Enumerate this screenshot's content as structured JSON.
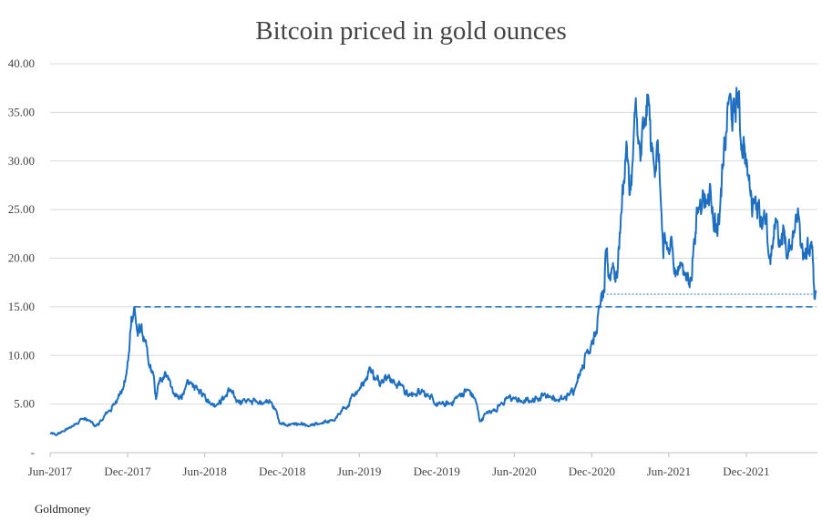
{
  "source": "Goldmoney",
  "chart_data": {
    "type": "line",
    "title": "Bitcoin priced in gold ounces",
    "xlabel": "",
    "ylabel": "",
    "ylim": [
      0,
      40
    ],
    "y_ticks": [
      0,
      5,
      10,
      15,
      20,
      25,
      30,
      35,
      40
    ],
    "y_tick_labels": [
      "-",
      "5.00",
      "10.00",
      "15.00",
      "20.00",
      "25.00",
      "30.00",
      "35.00",
      "40.00"
    ],
    "x_ticks": [
      "2017-06-01",
      "2017-12-01",
      "2018-06-01",
      "2018-12-01",
      "2019-06-01",
      "2019-12-01",
      "2020-06-01",
      "2020-12-01",
      "2021-06-01",
      "2021-12-01"
    ],
    "x_tick_labels": [
      "Jun-2017",
      "Dec-2017",
      "Jun-2018",
      "Dec-2018",
      "Jun-2019",
      "Dec-2019",
      "Jun-2020",
      "Dec-2020",
      "Jun-2021",
      "Dec-2021"
    ],
    "grid": "horizontal",
    "line_color": "#1f6fc0",
    "series": [
      {
        "values": [
          [
            "2017-06-01",
            2.0
          ],
          [
            "2017-06-15",
            1.8
          ],
          [
            "2017-07-01",
            2.2
          ],
          [
            "2017-07-15",
            2.5
          ],
          [
            "2017-08-01",
            3.0
          ],
          [
            "2017-08-15",
            3.5
          ],
          [
            "2017-09-01",
            3.3
          ],
          [
            "2017-09-15",
            2.7
          ],
          [
            "2017-10-01",
            3.3
          ],
          [
            "2017-10-15",
            4.2
          ],
          [
            "2017-11-01",
            5.0
          ],
          [
            "2017-11-10",
            6.0
          ],
          [
            "2017-11-20",
            6.5
          ],
          [
            "2017-11-28",
            8.0
          ],
          [
            "2017-12-05",
            10.5
          ],
          [
            "2017-12-10",
            14.0
          ],
          [
            "2017-12-17",
            15.0
          ],
          [
            "2017-12-25",
            12.0
          ],
          [
            "2018-01-01",
            13.0
          ],
          [
            "2018-01-10",
            11.5
          ],
          [
            "2018-01-20",
            9.0
          ],
          [
            "2018-01-31",
            8.0
          ],
          [
            "2018-02-06",
            5.5
          ],
          [
            "2018-02-15",
            7.5
          ],
          [
            "2018-02-28",
            8.3
          ],
          [
            "2018-03-10",
            7.5
          ],
          [
            "2018-03-20",
            6.0
          ],
          [
            "2018-04-01",
            5.5
          ],
          [
            "2018-04-15",
            6.5
          ],
          [
            "2018-05-01",
            7.2
          ],
          [
            "2018-05-15",
            6.5
          ],
          [
            "2018-06-01",
            6.0
          ],
          [
            "2018-06-15",
            5.0
          ],
          [
            "2018-07-01",
            5.0
          ],
          [
            "2018-07-20",
            5.8
          ],
          [
            "2018-08-01",
            6.5
          ],
          [
            "2018-08-15",
            5.2
          ],
          [
            "2018-09-01",
            5.5
          ],
          [
            "2018-09-15",
            5.3
          ],
          [
            "2018-10-01",
            5.3
          ],
          [
            "2018-10-20",
            5.2
          ],
          [
            "2018-11-05",
            5.2
          ],
          [
            "2018-11-15",
            4.5
          ],
          [
            "2018-11-25",
            3.0
          ],
          [
            "2018-12-10",
            2.8
          ],
          [
            "2018-12-25",
            3.0
          ],
          [
            "2019-01-10",
            2.9
          ],
          [
            "2019-02-01",
            2.7
          ],
          [
            "2019-03-01",
            3.0
          ],
          [
            "2019-04-01",
            3.3
          ],
          [
            "2019-04-15",
            4.0
          ],
          [
            "2019-05-01",
            4.5
          ],
          [
            "2019-05-15",
            6.0
          ],
          [
            "2019-06-01",
            6.5
          ],
          [
            "2019-06-15",
            7.5
          ],
          [
            "2019-06-26",
            8.8
          ],
          [
            "2019-07-10",
            7.5
          ],
          [
            "2019-07-25",
            7.5
          ],
          [
            "2019-08-10",
            8.0
          ],
          [
            "2019-08-25",
            7.0
          ],
          [
            "2019-09-10",
            7.0
          ],
          [
            "2019-09-25",
            5.8
          ],
          [
            "2019-10-10",
            6.0
          ],
          [
            "2019-10-27",
            6.5
          ],
          [
            "2019-11-10",
            6.0
          ],
          [
            "2019-11-25",
            5.0
          ],
          [
            "2019-12-10",
            5.0
          ],
          [
            "2020-01-01",
            5.0
          ],
          [
            "2020-01-20",
            5.8
          ],
          [
            "2020-02-12",
            6.5
          ],
          [
            "2020-03-01",
            5.5
          ],
          [
            "2020-03-12",
            3.2
          ],
          [
            "2020-03-25",
            4.0
          ],
          [
            "2020-04-10",
            4.3
          ],
          [
            "2020-04-30",
            5.0
          ],
          [
            "2020-05-15",
            5.6
          ],
          [
            "2020-06-01",
            5.6
          ],
          [
            "2020-06-20",
            5.2
          ],
          [
            "2020-07-10",
            5.3
          ],
          [
            "2020-07-25",
            5.6
          ],
          [
            "2020-08-10",
            6.0
          ],
          [
            "2020-08-25",
            5.8
          ],
          [
            "2020-09-10",
            5.4
          ],
          [
            "2020-09-25",
            5.5
          ],
          [
            "2020-10-10",
            6.0
          ],
          [
            "2020-10-25",
            7.0
          ],
          [
            "2020-11-05",
            8.5
          ],
          [
            "2020-11-20",
            10.5
          ],
          [
            "2020-12-01",
            11.5
          ],
          [
            "2020-12-10",
            12.0
          ],
          [
            "2020-12-20",
            15.0
          ],
          [
            "2020-12-31",
            16.5
          ],
          [
            "2021-01-05",
            21.0
          ],
          [
            "2021-01-10",
            18.0
          ],
          [
            "2021-01-20",
            19.5
          ],
          [
            "2021-01-30",
            18.0
          ],
          [
            "2021-02-08",
            24.5
          ],
          [
            "2021-02-15",
            28.0
          ],
          [
            "2021-02-21",
            32.0
          ],
          [
            "2021-02-28",
            26.5
          ],
          [
            "2021-03-08",
            30.0
          ],
          [
            "2021-03-13",
            35.0
          ],
          [
            "2021-03-20",
            32.5
          ],
          [
            "2021-03-26",
            30.0
          ],
          [
            "2021-04-05",
            33.5
          ],
          [
            "2021-04-14",
            36.5
          ],
          [
            "2021-04-20",
            31.0
          ],
          [
            "2021-04-26",
            30.0
          ],
          [
            "2021-05-05",
            32.0
          ],
          [
            "2021-05-12",
            27.0
          ],
          [
            "2021-05-19",
            20.0
          ],
          [
            "2021-05-25",
            21.5
          ],
          [
            "2021-06-01",
            20.5
          ],
          [
            "2021-06-10",
            21.0
          ],
          [
            "2021-06-20",
            18.5
          ],
          [
            "2021-06-30",
            19.5
          ],
          [
            "2021-07-10",
            18.5
          ],
          [
            "2021-07-20",
            17.0
          ],
          [
            "2021-07-31",
            22.0
          ],
          [
            "2021-08-10",
            25.0
          ],
          [
            "2021-08-20",
            27.0
          ],
          [
            "2021-08-30",
            26.0
          ],
          [
            "2021-09-07",
            27.5
          ],
          [
            "2021-09-15",
            23.0
          ],
          [
            "2021-09-22",
            23.5
          ],
          [
            "2021-09-30",
            25.0
          ],
          [
            "2021-10-08",
            29.5
          ],
          [
            "2021-10-15",
            33.0
          ],
          [
            "2021-10-21",
            36.5
          ],
          [
            "2021-10-28",
            34.0
          ],
          [
            "2021-11-03",
            35.0
          ],
          [
            "2021-11-10",
            37.0
          ],
          [
            "2021-11-18",
            32.0
          ],
          [
            "2021-11-25",
            32.5
          ],
          [
            "2021-12-04",
            28.5
          ],
          [
            "2021-12-10",
            27.0
          ],
          [
            "2021-12-20",
            26.0
          ],
          [
            "2021-12-31",
            26.0
          ],
          [
            "2022-01-07",
            23.0
          ],
          [
            "2022-01-15",
            23.5
          ],
          [
            "2022-01-24",
            20.0
          ],
          [
            "2022-02-01",
            21.0
          ],
          [
            "2022-02-10",
            24.0
          ],
          [
            "2022-02-20",
            21.5
          ],
          [
            "2022-02-28",
            23.0
          ],
          [
            "2022-03-07",
            20.0
          ],
          [
            "2022-03-15",
            21.0
          ],
          [
            "2022-03-28",
            24.5
          ],
          [
            "2022-04-05",
            24.0
          ],
          [
            "2022-04-12",
            21.5
          ],
          [
            "2022-04-20",
            21.0
          ],
          [
            "2022-04-28",
            20.5
          ],
          [
            "2022-05-05",
            21.0
          ],
          [
            "2022-05-09",
            17.5
          ],
          [
            "2022-05-12",
            15.8
          ],
          [
            "2022-05-15",
            16.5
          ]
        ]
      }
    ],
    "reference_lines": [
      {
        "style": "dashed",
        "y": 15.0,
        "from": "2017-12-17",
        "to": "2022-05-15"
      },
      {
        "style": "dotted",
        "y": 16.3,
        "from": "2021-01-05",
        "to": "2022-05-15"
      }
    ]
  }
}
